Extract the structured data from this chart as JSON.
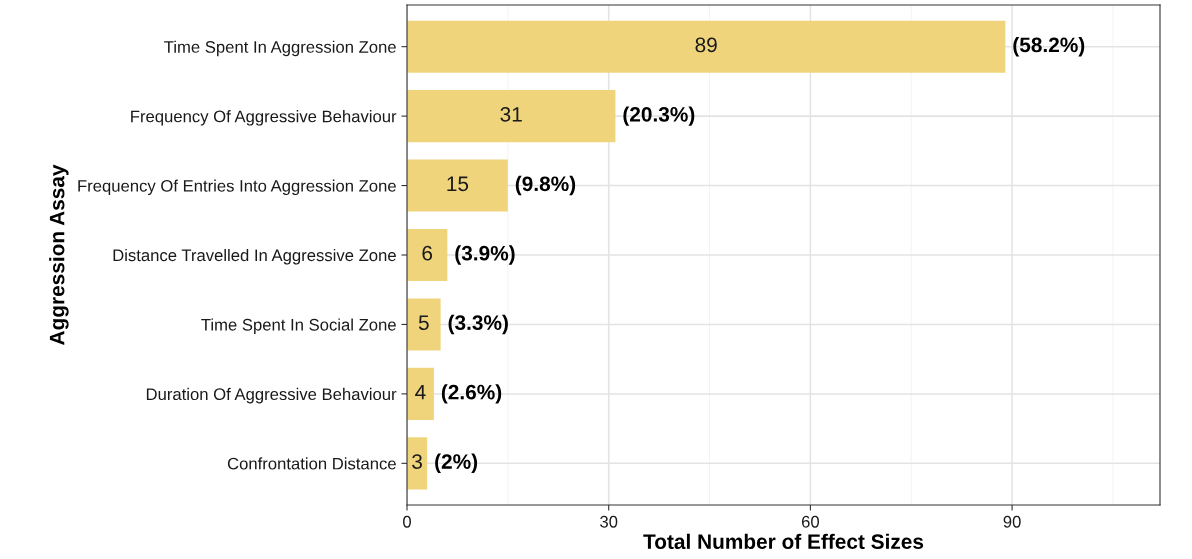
{
  "chart_data": {
    "type": "bar",
    "orientation": "horizontal",
    "xlabel": "Total Number of Effect Sizes",
    "ylabel": "Aggression Assay",
    "categories": [
      "Time Spent In Aggression Zone",
      "Frequency Of Aggressive Behaviour",
      "Frequency Of Entries Into Aggression Zone",
      "Distance Travelled In Aggressive Zone",
      "Time Spent In Social Zone",
      "Duration Of Aggressive Behaviour",
      "Confrontation Distance"
    ],
    "values": [
      89,
      31,
      15,
      6,
      5,
      4,
      3
    ],
    "color": "#f0d47c",
    "data_labels": true,
    "annotations": [
      {
        "text": "(58.2%)",
        "x": 89,
        "y": "Time Spent In Aggression Zone"
      },
      {
        "text": "(20.3%)",
        "x": 31,
        "y": "Frequency Of Aggressive Behaviour"
      },
      {
        "text": "(9.8%)",
        "x": 15,
        "y": "Frequency Of Entries Into Aggression Zone"
      },
      {
        "text": "(3.9%)",
        "x": 6,
        "y": "Distance Travelled In Aggressive Zone"
      },
      {
        "text": "(3.3%)",
        "x": 5,
        "y": "Time Spent In Social Zone"
      },
      {
        "text": "(2.6%)",
        "x": 4,
        "y": "Duration Of Aggressive Behaviour"
      },
      {
        "text": "(2%)",
        "x": 3,
        "y": "Confrontation Distance"
      }
    ],
    "xlim": [
      0,
      112
    ],
    "xticks": [
      0,
      30,
      60,
      90
    ],
    "grid": true
  }
}
